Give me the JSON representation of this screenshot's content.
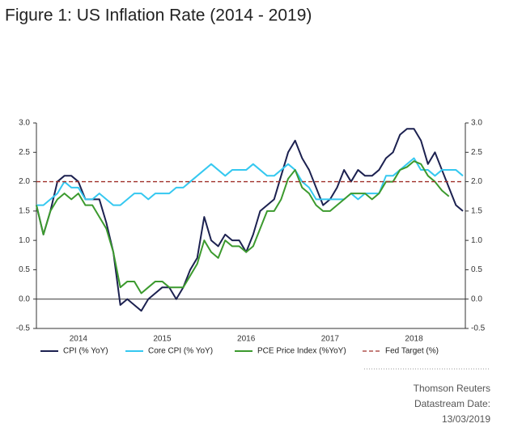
{
  "chart_data": {
    "type": "line",
    "title": "Figure 1: US Inflation Rate (2014 - 2019)",
    "categories": [
      null,
      null,
      null,
      null,
      null,
      null,
      "2014",
      null,
      null,
      null,
      null,
      null,
      null,
      null,
      null,
      null,
      null,
      null,
      "2015",
      null,
      null,
      null,
      null,
      null,
      null,
      null,
      null,
      null,
      null,
      null,
      "2016",
      null,
      null,
      null,
      null,
      null,
      null,
      null,
      null,
      null,
      null,
      null,
      "2017",
      null,
      null,
      null,
      null,
      null,
      null,
      null,
      null,
      null,
      null,
      null,
      "2018",
      null,
      null,
      null,
      null,
      null,
      null,
      null
    ],
    "series": [
      {
        "name": "CPI (% YoY)",
        "color": "#1c2150",
        "values": [
          1.6,
          1.1,
          1.5,
          2.0,
          2.1,
          2.1,
          2.0,
          1.7,
          1.7,
          1.7,
          1.3,
          0.8,
          -0.1,
          0.0,
          -0.1,
          -0.2,
          0.0,
          0.1,
          0.2,
          0.2,
          0.0,
          0.2,
          0.5,
          0.7,
          1.4,
          1.0,
          0.9,
          1.1,
          1.0,
          1.0,
          0.8,
          1.1,
          1.5,
          1.6,
          1.7,
          2.1,
          2.5,
          2.7,
          2.4,
          2.2,
          1.9,
          1.6,
          1.7,
          1.9,
          2.2,
          2.0,
          2.2,
          2.1,
          2.1,
          2.2,
          2.4,
          2.5,
          2.8,
          2.9,
          2.9,
          2.7,
          2.3,
          2.5,
          2.2,
          1.9,
          1.6,
          1.5
        ]
      },
      {
        "name": "Core CPI (% YoY)",
        "color": "#35c8f0",
        "values": [
          1.6,
          1.6,
          1.7,
          1.8,
          2.0,
          1.9,
          1.9,
          1.7,
          1.7,
          1.8,
          1.7,
          1.6,
          1.6,
          1.7,
          1.8,
          1.8,
          1.7,
          1.8,
          1.8,
          1.8,
          1.9,
          1.9,
          2.0,
          2.1,
          2.2,
          2.3,
          2.2,
          2.1,
          2.2,
          2.2,
          2.2,
          2.3,
          2.2,
          2.1,
          2.1,
          2.2,
          2.3,
          2.2,
          2.0,
          1.9,
          1.7,
          1.7,
          1.7,
          1.7,
          1.7,
          1.8,
          1.7,
          1.8,
          1.8,
          1.8,
          2.1,
          2.1,
          2.2,
          2.3,
          2.4,
          2.2,
          2.2,
          2.1,
          2.2,
          2.2,
          2.2,
          2.1
        ]
      },
      {
        "name": "PCE Price Index (%YoY)",
        "color": "#3c9a2e",
        "values": [
          1.6,
          1.1,
          1.5,
          1.7,
          1.8,
          1.7,
          1.8,
          1.6,
          1.6,
          1.4,
          1.2,
          0.8,
          0.2,
          0.3,
          0.3,
          0.1,
          0.2,
          0.3,
          0.3,
          0.2,
          0.2,
          0.2,
          0.4,
          0.6,
          1.0,
          0.8,
          0.7,
          1.0,
          0.9,
          0.9,
          0.8,
          0.9,
          1.2,
          1.5,
          1.5,
          1.7,
          2.05,
          2.2,
          1.9,
          1.8,
          1.6,
          1.5,
          1.5,
          1.6,
          1.7,
          1.8,
          1.8,
          1.8,
          1.7,
          1.8,
          2.0,
          2.0,
          2.2,
          2.25,
          2.35,
          2.3,
          2.1,
          2.0,
          1.85,
          1.75,
          null,
          null
        ]
      },
      {
        "name": "Fed Target (%)",
        "color": "#a0302a",
        "dashed": true,
        "values": [
          2,
          2,
          2,
          2,
          2,
          2,
          2,
          2,
          2,
          2,
          2,
          2,
          2,
          2,
          2,
          2,
          2,
          2,
          2,
          2,
          2,
          2,
          2,
          2,
          2,
          2,
          2,
          2,
          2,
          2,
          2,
          2,
          2,
          2,
          2,
          2,
          2,
          2,
          2,
          2,
          2,
          2,
          2,
          2,
          2,
          2,
          2,
          2,
          2,
          2,
          2,
          2,
          2,
          2,
          2,
          2,
          2,
          2,
          2,
          2,
          2,
          2
        ]
      }
    ],
    "ylim": [
      -0.5,
      3.0
    ],
    "yticks": [
      {
        "value": -0.5,
        "label": "-0.5"
      },
      {
        "value": 0,
        "label": "0.0"
      },
      {
        "value": 0.5,
        "label": "0.5"
      },
      {
        "value": 1,
        "label": "1.0"
      },
      {
        "value": 1.5,
        "label": "1.5"
      },
      {
        "value": 2,
        "label": "2.0"
      },
      {
        "value": 2.5,
        "label": "2.5"
      },
      {
        "value": 3,
        "label": "3.0"
      }
    ],
    "y2lim": [
      -0.5,
      3.0
    ],
    "y2ticks": [
      {
        "value": -0.5,
        "label": "-0.5"
      },
      {
        "value": 0,
        "label": "0.0"
      },
      {
        "value": 0.5,
        "label": "0.5"
      },
      {
        "value": 1,
        "label": "1.0"
      },
      {
        "value": 1.5,
        "label": "1.5"
      },
      {
        "value": 2,
        "label": "2.0"
      },
      {
        "value": 2.5,
        "label": "2.5"
      },
      {
        "value": 3,
        "label": "3.0"
      }
    ],
    "legend": "bottom",
    "zero_line": true
  },
  "source": [
    "Thomson Reuters",
    "Datastream Date:",
    "13/03/2019"
  ]
}
